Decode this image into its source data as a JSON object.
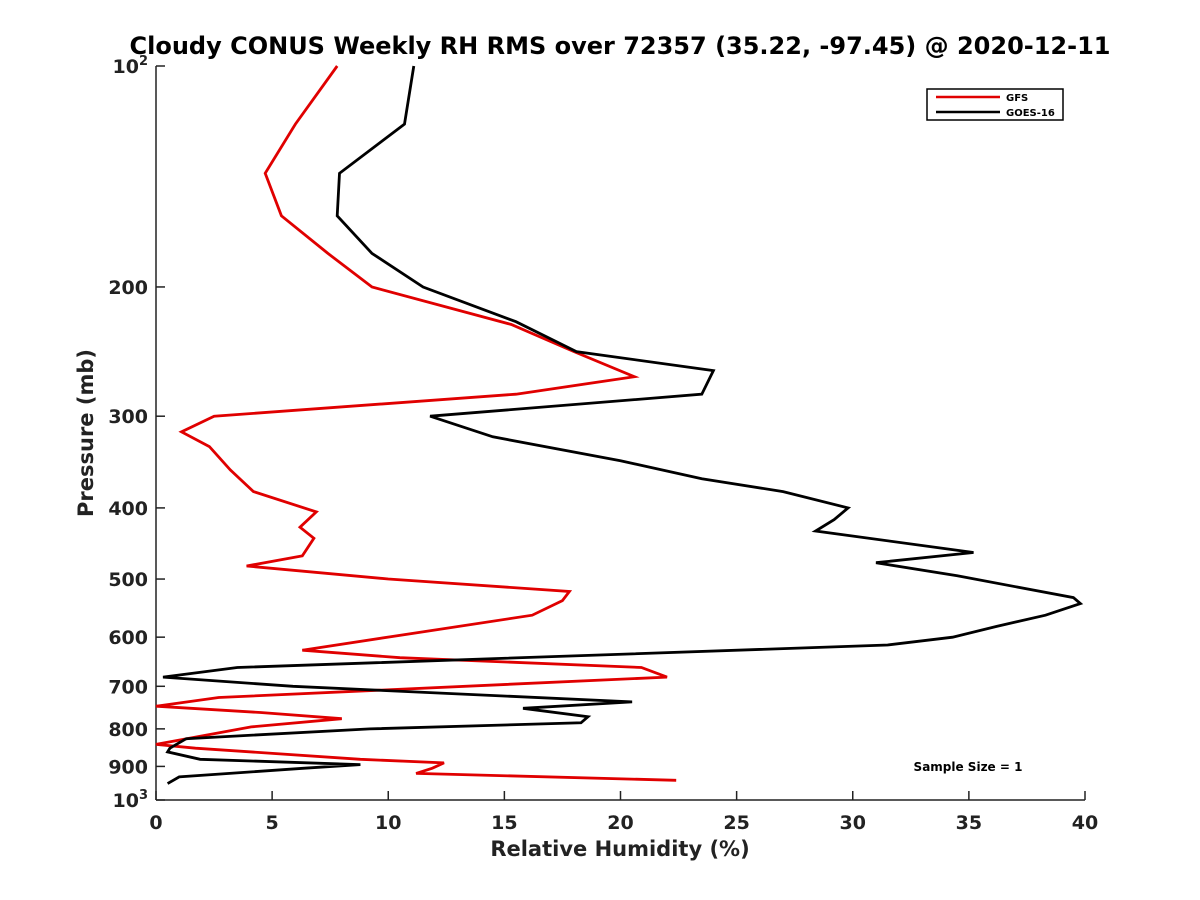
{
  "chart_data": {
    "type": "line",
    "title": "Cloudy CONUS Weekly RH RMS over 72357 (35.22, -97.45) @ 2020-12-11",
    "xlabel": "Relative Humidity (%)",
    "ylabel": "Pressure (mb)",
    "xlim": [
      0,
      40
    ],
    "ylim": [
      100,
      1000
    ],
    "yscale": "log",
    "y_reversed": true,
    "x_ticks": [
      0,
      5,
      10,
      15,
      20,
      25,
      30,
      35,
      40
    ],
    "y_ticks": [
      {
        "value": 100,
        "base": "10",
        "exp": "2"
      },
      {
        "value": 200,
        "label": "200"
      },
      {
        "value": 300,
        "label": "300"
      },
      {
        "value": 400,
        "label": "400"
      },
      {
        "value": 500,
        "label": "500"
      },
      {
        "value": 600,
        "label": "600"
      },
      {
        "value": 700,
        "label": "700"
      },
      {
        "value": 800,
        "label": "800"
      },
      {
        "value": 900,
        "label": "900"
      },
      {
        "value": 1000,
        "base": "10",
        "exp": "3"
      }
    ],
    "grid": false,
    "legend_position": "top-right",
    "series": [
      {
        "name": "GFS",
        "color": "#e00000",
        "points": [
          [
            7.8,
            100
          ],
          [
            6.0,
            120
          ],
          [
            4.7,
            140
          ],
          [
            5.4,
            160
          ],
          [
            7.4,
            180
          ],
          [
            9.3,
            200
          ],
          [
            15.3,
            225
          ],
          [
            18.0,
            245
          ],
          [
            20.6,
            265
          ],
          [
            15.5,
            280
          ],
          [
            2.5,
            300
          ],
          [
            1.1,
            315
          ],
          [
            2.3,
            330
          ],
          [
            3.2,
            355
          ],
          [
            4.2,
            380
          ],
          [
            6.9,
            405
          ],
          [
            6.2,
            425
          ],
          [
            6.8,
            440
          ],
          [
            6.3,
            465
          ],
          [
            3.9,
            480
          ],
          [
            10.0,
            500
          ],
          [
            17.8,
            520
          ],
          [
            17.5,
            535
          ],
          [
            16.2,
            560
          ],
          [
            6.3,
            625
          ],
          [
            10.5,
            640
          ],
          [
            20.9,
            660
          ],
          [
            22.0,
            680
          ],
          [
            2.7,
            725
          ],
          [
            0.0,
            745
          ],
          [
            4.5,
            760
          ],
          [
            8.0,
            775
          ],
          [
            4.1,
            795
          ],
          [
            0.0,
            840
          ],
          [
            1.7,
            850
          ],
          [
            8.8,
            880
          ],
          [
            12.4,
            890
          ],
          [
            11.9,
            905
          ],
          [
            11.2,
            920
          ],
          [
            22.4,
            940
          ]
        ]
      },
      {
        "name": "GOES-16",
        "color": "#000000",
        "points": [
          [
            11.1,
            100
          ],
          [
            10.7,
            120
          ],
          [
            7.9,
            140
          ],
          [
            7.8,
            160
          ],
          [
            9.3,
            180
          ],
          [
            11.5,
            200
          ],
          [
            15.5,
            223
          ],
          [
            18.1,
            245
          ],
          [
            24.0,
            260
          ],
          [
            23.5,
            280
          ],
          [
            11.8,
            300
          ],
          [
            14.5,
            320
          ],
          [
            20.0,
            345
          ],
          [
            23.5,
            365
          ],
          [
            27.0,
            380
          ],
          [
            29.8,
            400
          ],
          [
            29.2,
            415
          ],
          [
            28.4,
            430
          ],
          [
            35.2,
            460
          ],
          [
            31.0,
            475
          ],
          [
            34.5,
            495
          ],
          [
            39.5,
            530
          ],
          [
            39.8,
            540
          ],
          [
            38.3,
            560
          ],
          [
            36.2,
            580
          ],
          [
            34.3,
            600
          ],
          [
            31.5,
            615
          ],
          [
            9.5,
            650
          ],
          [
            3.5,
            660
          ],
          [
            0.3,
            680
          ],
          [
            5.9,
            700
          ],
          [
            20.5,
            735
          ],
          [
            15.8,
            750
          ],
          [
            18.6,
            770
          ],
          [
            18.3,
            785
          ],
          [
            9.2,
            800
          ],
          [
            1.3,
            825
          ],
          [
            0.6,
            850
          ],
          [
            0.5,
            860
          ],
          [
            1.9,
            880
          ],
          [
            8.8,
            895
          ],
          [
            6.4,
            905
          ],
          [
            1.0,
            930
          ],
          [
            0.5,
            950
          ]
        ]
      }
    ],
    "annotation": "Sample Size = 1"
  }
}
